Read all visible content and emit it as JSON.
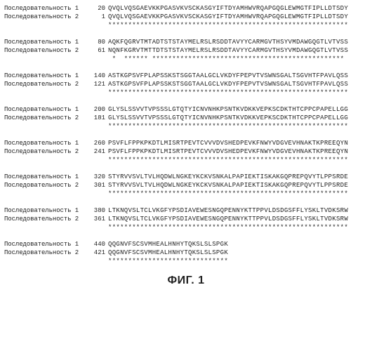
{
  "label_text": "Последовательность",
  "caption": "ФИГ. 1",
  "seq_fontsize": 9,
  "font_family_mono": "Courier New",
  "font_family_caption": "Arial",
  "text_color": "#222222",
  "background_color": "#ffffff",
  "letter_spacing_seq": 0.3,
  "blocks": [
    {
      "s1_num": 20,
      "s2_num": 1,
      "seq1": "QVQLVQSGAEVKKPGASVKVSCKASGYIFTDYAMHWVRQAPGQGLEWMGTFIPLLDTSDY",
      "seq2": "QVQLVQSGAEVKKPGASVKVSCKASGYIFTDYAMHWVRQAPGQGLEWMGTFIPLLDTSDY",
      "match": "************************************************************"
    },
    {
      "s1_num": 80,
      "s2_num": 61,
      "seq1": "AQKFQGRVTMTADTSTSTAYMELRSLRSDDTAVYYCARMGVTHSYVMDAWGQGTLVTVSS",
      "seq2": "NQNFKGRVTMTTDTSTSTAYMELRSLRSDDTAVYYCARMGVTHSYVMDAWGQGTLVTVSS",
      "match": " *  ****** ************************************************"
    },
    {
      "s1_num": 140,
      "s2_num": 121,
      "seq1": "ASTKGPSVFPLAPSSKSTSGGTAALGCLVKDYFPEPVTVSWNSGALTSGVHTFPAVLQSS",
      "seq2": "ASTKGPSVFPLAPSSKSTSGGTAALGCLVKDYFPEPVTVSWNSGALTSGVHTFPAVLQSS",
      "match": "************************************************************"
    },
    {
      "s1_num": 200,
      "s2_num": 181,
      "seq1": "GLYSLSSVVTVPSSSLGTQTYICNVNHKPSNTKVDKKVEPKSCDKTHTCPPCPAPELLGG",
      "seq2": "GLYSLSSVVTVPSSSLGTQTYICNVNHKPSNTKVDKKVEPKSCDKTHTCPPCPAPELLGG",
      "match": "************************************************************"
    },
    {
      "s1_num": 260,
      "s2_num": 241,
      "seq1": "PSVFLFPPKPKDTLMISRTPEVTCVVVDVSHEDPEVKFNWYVDGVEVHNAKTKPREEQYN",
      "seq2": "PSVFLFPPKPKDTLMISRTPEVTCVVVDVSHEDPEVKFNWYVDGVEVHNAKTKPREEQYN",
      "match": "************************************************************"
    },
    {
      "s1_num": 320,
      "s2_num": 301,
      "seq1": "STYRVVSVLTVLHQDWLNGKEYKCKVSNKALPAPIEKTISKAKGQPREPQVYTLPPSRDE",
      "seq2": "STYRVVSVLTVLHQDWLNGKEYKCKVSNKALPAPIEKTISKAKGQPREPQVYTLPPSRDE",
      "match": "************************************************************"
    },
    {
      "s1_num": 380,
      "s2_num": 361,
      "seq1": "LTKNQVSLTCLVKGFYPSDIAVEWESNGQPENNYKTTPPVLDSDGSFFLYSKLTVDKSRW",
      "seq2": "LTKNQVSLTCLVKGFYPSDIAVEWESNGQPENNYKTTPPVLDSDGSFFLYSKLTVDKSRW",
      "match": "************************************************************"
    },
    {
      "s1_num": 440,
      "s2_num": 421,
      "seq1": "QQGNVFSCSVMHEALHNHYTQKSLSLSPGK",
      "seq2": "QQGNVFSCSVMHEALHNHYTQKSLSLSPGK",
      "match": "******************************"
    }
  ]
}
